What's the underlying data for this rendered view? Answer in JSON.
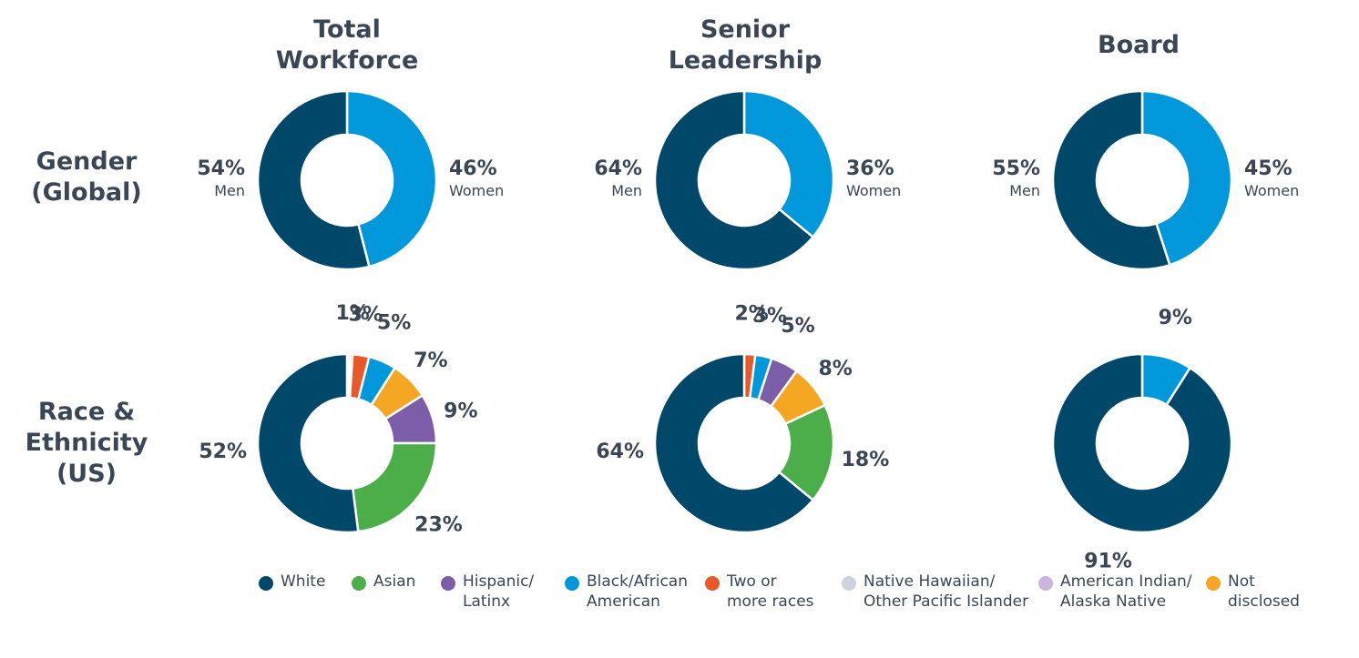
{
  "column_titles": [
    "Total\nWorkforce",
    "Senior\nLeadership",
    "Board"
  ],
  "row_titles": [
    "Gender\n(Global)",
    "Race &\nEthnicity\n(US)"
  ],
  "colors": {
    "men": "#004869",
    "women": "#0098da",
    "White": "#004869",
    "Asian": "#4cae48",
    "Hispanic/Latinx": "#7b5ea7",
    "Black/African American": "#0098da",
    "Two or more races": "#e8582a",
    "Native Hawaiian/Other Pacific Islander": "#cdd3dc",
    "American Indian/Alaska Native": "#c9b5dd",
    "Not disclosed": "#f5a623"
  },
  "legend": [
    {
      "key": "White",
      "label": "White"
    },
    {
      "key": "Asian",
      "label": "Asian"
    },
    {
      "key": "Hispanic/Latinx",
      "label": "Hispanic/\nLatinx"
    },
    {
      "key": "Black/African American",
      "label": "Black/African\nAmerican"
    },
    {
      "key": "Two or more races",
      "label": "Two or\nmore races"
    },
    {
      "key": "Native Hawaiian/Other Pacific Islander",
      "label": "Native Hawaiian/\nOther Pacific Islander"
    },
    {
      "key": "American Indian/Alaska Native",
      "label": "American Indian/\nAlaska Native"
    },
    {
      "key": "Not disclosed",
      "label": "Not\ndisclosed"
    }
  ],
  "chart_data": [
    {
      "type": "pie",
      "group": "Total Workforce",
      "category": "Gender (Global)",
      "slices": [
        {
          "key": "women",
          "name": "Women",
          "value": 46,
          "label": "46%"
        },
        {
          "key": "men",
          "name": "Men",
          "value": 54,
          "label": "54%"
        }
      ]
    },
    {
      "type": "pie",
      "group": "Senior Leadership",
      "category": "Gender (Global)",
      "slices": [
        {
          "key": "women",
          "name": "Women",
          "value": 36,
          "label": "36%"
        },
        {
          "key": "men",
          "name": "Men",
          "value": 64,
          "label": "64%"
        }
      ]
    },
    {
      "type": "pie",
      "group": "Board",
      "category": "Gender (Global)",
      "slices": [
        {
          "key": "women",
          "name": "Women",
          "value": 45,
          "label": "45%"
        },
        {
          "key": "men",
          "name": "Men",
          "value": 55,
          "label": "55%"
        }
      ]
    },
    {
      "type": "pie",
      "group": "Total Workforce",
      "category": "Race & Ethnicity (US)",
      "slices": [
        {
          "key": "American Indian/Alaska Native",
          "value": 0.5,
          "label": ""
        },
        {
          "key": "Native Hawaiian/Other Pacific Islander",
          "value": 0.5,
          "label": "1%"
        },
        {
          "key": "Two or more races",
          "value": 3,
          "label": "3%"
        },
        {
          "key": "Black/African American",
          "value": 5,
          "label": "5%"
        },
        {
          "key": "Not disclosed",
          "value": 7,
          "label": "7%"
        },
        {
          "key": "Hispanic/Latinx",
          "value": 9,
          "label": "9%"
        },
        {
          "key": "Asian",
          "value": 23,
          "label": "23%"
        },
        {
          "key": "White",
          "value": 52,
          "label": "52%"
        }
      ]
    },
    {
      "type": "pie",
      "group": "Senior Leadership",
      "category": "Race & Ethnicity (US)",
      "slices": [
        {
          "key": "Two or more races",
          "value": 2,
          "label": "2%"
        },
        {
          "key": "Black/African American",
          "value": 3,
          "label": "3%"
        },
        {
          "key": "Hispanic/Latinx",
          "value": 5,
          "label": "5%"
        },
        {
          "key": "Not disclosed",
          "value": 8,
          "label": "8%"
        },
        {
          "key": "Asian",
          "value": 18,
          "label": "18%"
        },
        {
          "key": "White",
          "value": 64,
          "label": "64%"
        }
      ]
    },
    {
      "type": "pie",
      "group": "Board",
      "category": "Race & Ethnicity (US)",
      "slices": [
        {
          "key": "Black/African American",
          "value": 9,
          "label": "9%"
        },
        {
          "key": "White",
          "value": 91,
          "label": "91%"
        }
      ]
    }
  ]
}
